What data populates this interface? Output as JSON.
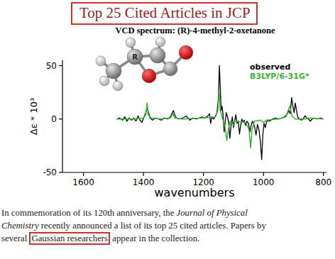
{
  "header": {
    "title": "Top 25 Cited Articles in JCP"
  },
  "chart_data": {
    "type": "line",
    "title": "VCD spectrum: (R)-4-methyl-2-oxetanone",
    "x_label": "wavenumbers",
    "y_label": "Δε * 10³",
    "xlim": [
      1670,
      790
    ],
    "ylim": [
      -50,
      55
    ],
    "xticks": [
      1600,
      1400,
      1200,
      1000,
      800
    ],
    "yticks": [
      -50,
      0,
      50
    ],
    "grid": false,
    "legend": "top-right",
    "series": [
      {
        "name": "observed",
        "color": "#000000",
        "x": [
          1490,
          1480,
          1470,
          1462,
          1455,
          1448,
          1440,
          1432,
          1425,
          1418,
          1412,
          1405,
          1398,
          1392,
          1388,
          1384,
          1378,
          1370,
          1360,
          1350,
          1340,
          1330,
          1320,
          1310,
          1304,
          1300,
          1296,
          1290,
          1280,
          1270,
          1262,
          1257,
          1252,
          1245,
          1235,
          1225,
          1215,
          1205,
          1195,
          1185,
          1180,
          1176,
          1172,
          1166,
          1160,
          1155,
          1150,
          1147,
          1144,
          1141,
          1138,
          1135,
          1131,
          1128,
          1124,
          1120,
          1116,
          1112,
          1108,
          1104,
          1100,
          1096,
          1092,
          1088,
          1084,
          1080,
          1076,
          1072,
          1068,
          1064,
          1060,
          1055,
          1050,
          1045,
          1041,
          1037,
          1033,
          1029,
          1025,
          1020,
          1015,
          1010,
          1006,
          1002,
          998,
          994,
          990,
          985,
          980,
          970,
          960,
          950,
          940,
          930,
          922,
          916,
          911,
          906,
          902,
          898,
          894,
          890,
          886,
          880,
          874,
          868,
          862,
          856,
          850,
          844,
          838,
          830,
          820,
          810,
          800
        ],
        "values": [
          0,
          1,
          -1,
          2,
          -2,
          1,
          -1,
          1,
          -2,
          3,
          -1,
          -3,
          2,
          6,
          11,
          7,
          1,
          -1,
          1,
          0,
          -1,
          1,
          0,
          2,
          6,
          8,
          4,
          1,
          0,
          1,
          2,
          3,
          1,
          -1,
          1,
          0,
          1,
          2,
          1,
          3,
          5,
          -4,
          2,
          0,
          3,
          6,
          20,
          50,
          30,
          8,
          12,
          5,
          -12,
          -4,
          6,
          2,
          -3,
          -18,
          -6,
          2,
          -8,
          -2,
          4,
          -4,
          -2,
          -14,
          -6,
          0,
          -3,
          -1,
          -6,
          -2,
          -4,
          -12,
          -6,
          -2,
          -4,
          -8,
          -15,
          -5,
          -10,
          -22,
          -38,
          -14,
          -4,
          -8,
          -3,
          -1,
          -2,
          0,
          1,
          0,
          1,
          2,
          4,
          8,
          5,
          20,
          12,
          6,
          15,
          8,
          2,
          0,
          -1,
          0,
          3,
          1,
          0,
          -2,
          0,
          1,
          0,
          1,
          0
        ]
      },
      {
        "name": "B3LYP/6-31G*",
        "color": "#33b533",
        "x": [
          1490,
          1430,
          1400,
          1392,
          1388,
          1384,
          1375,
          1340,
          1310,
          1302,
          1296,
          1270,
          1200,
          1160,
          1152,
          1148,
          1144,
          1136,
          1128,
          1122,
          1116,
          1110,
          1100,
          1095,
          1060,
          1048,
          1043,
          1038,
          1030,
          1010,
          1000,
          990,
          950,
          925,
          918,
          912,
          905,
          895,
          860,
          850,
          800
        ],
        "values": [
          0,
          0,
          1,
          4,
          15,
          4,
          1,
          0,
          1,
          5,
          1,
          0,
          1,
          2,
          8,
          27,
          8,
          0,
          -8,
          -20,
          -8,
          -2,
          -6,
          -2,
          -3,
          -10,
          -27,
          -10,
          -2,
          -1,
          -3,
          -1,
          0,
          2,
          8,
          12,
          3,
          0,
          0,
          1,
          0
        ]
      }
    ]
  },
  "figure": {
    "molecule_label": "R"
  },
  "paragraph": {
    "lines": [
      [
        {
          "text": "In commemoration of its 120th anniversary, the "
        },
        {
          "text": "Journal of Physical",
          "italic": true
        }
      ],
      [
        {
          "text": "Chemistry",
          "italic": true
        },
        {
          "text": " recently announced a list of its top 25 cited articles. Papers by"
        }
      ],
      [
        {
          "text": "several "
        },
        {
          "text": "Gaussian researchers",
          "boxed": true
        },
        {
          "text": " appear in the collection."
        }
      ]
    ]
  }
}
